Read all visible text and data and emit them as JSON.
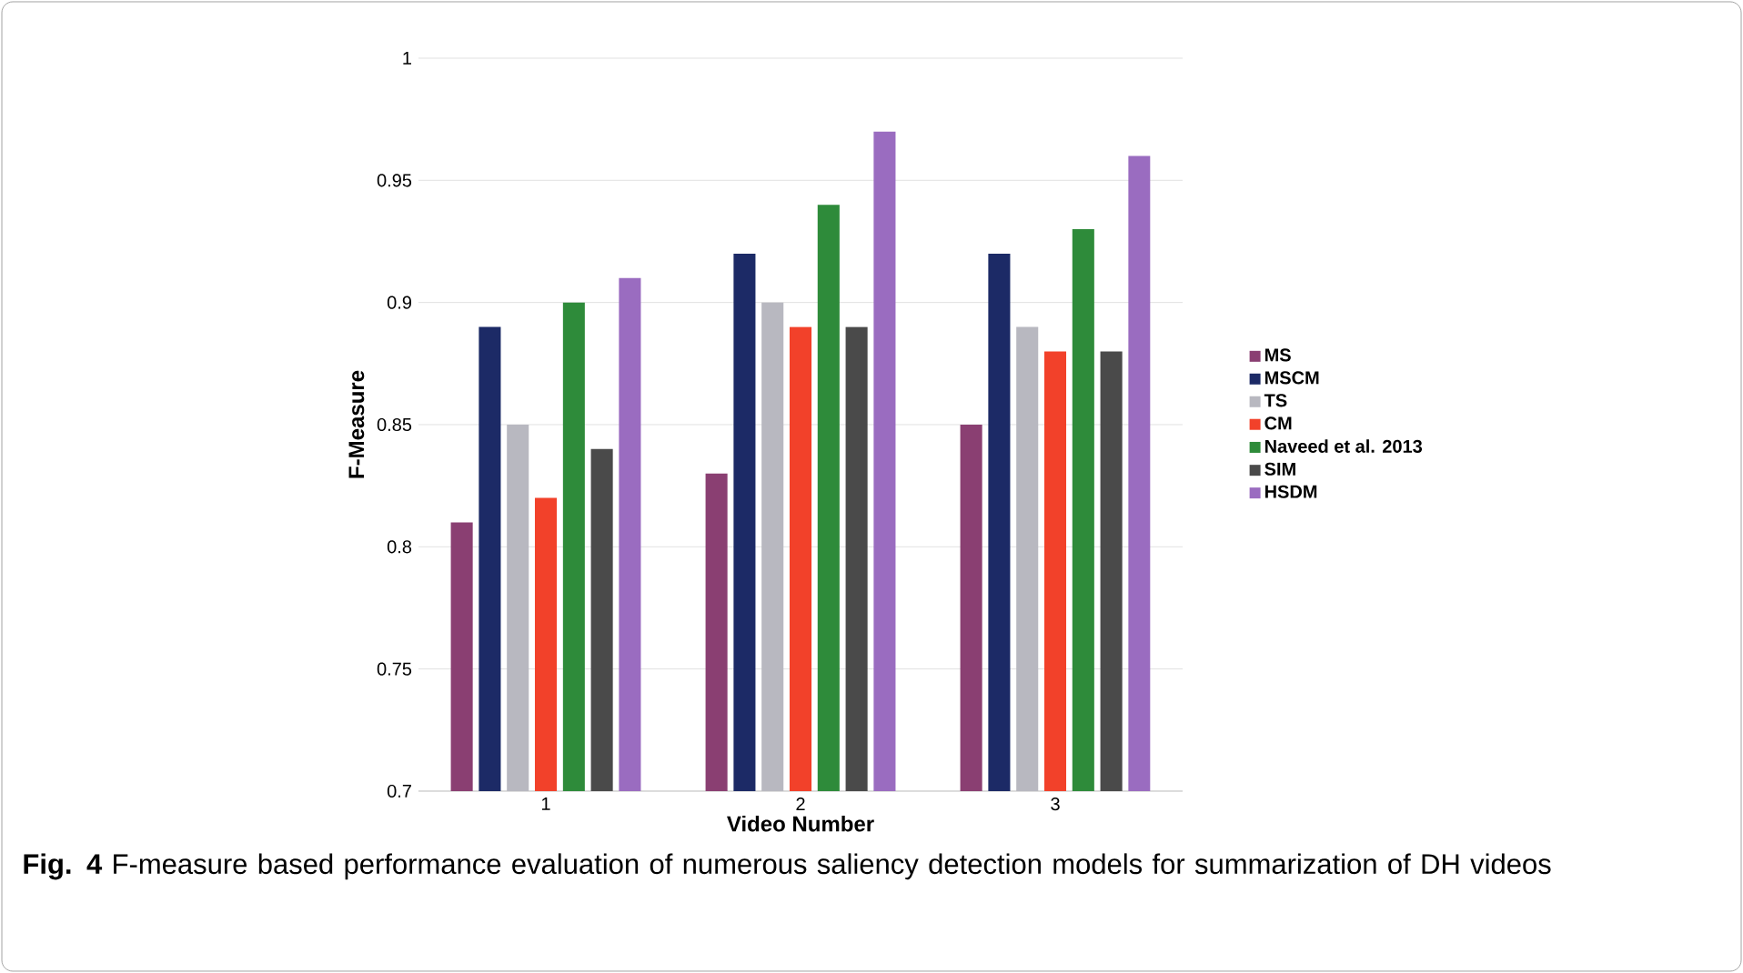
{
  "chart_data": {
    "type": "bar",
    "xlabel": "Video Number",
    "ylabel": "F-Measure",
    "categories": [
      "1",
      "2",
      "3"
    ],
    "series": [
      {
        "name": "MS",
        "color": "#8a3f72",
        "values": [
          0.81,
          0.83,
          0.85
        ]
      },
      {
        "name": "MSCM",
        "color": "#1c2a66",
        "values": [
          0.89,
          0.92,
          0.92
        ]
      },
      {
        "name": "TS",
        "color": "#b8b8c0",
        "values": [
          0.85,
          0.9,
          0.89
        ]
      },
      {
        "name": "CM",
        "color": "#f2412a",
        "values": [
          0.82,
          0.89,
          0.88
        ]
      },
      {
        "name": "Naveed et al. 2013",
        "color": "#2e8b3a",
        "values": [
          0.9,
          0.94,
          0.93
        ]
      },
      {
        "name": "SIM",
        "color": "#4a4a4a",
        "values": [
          0.84,
          0.89,
          0.88
        ]
      },
      {
        "name": "HSDM",
        "color": "#9a6cc0",
        "values": [
          0.91,
          0.97,
          0.96
        ]
      }
    ],
    "ylim": [
      0.7,
      1
    ],
    "yticks": [
      0.7,
      0.75,
      0.8,
      0.85,
      0.9,
      0.95,
      1
    ],
    "grid": "y",
    "legend": "right",
    "annotations": [
      "**Fig. 4**  F-measure based performance evaluation of numerous saliency detection models for summarization of DH videos"
    ]
  }
}
